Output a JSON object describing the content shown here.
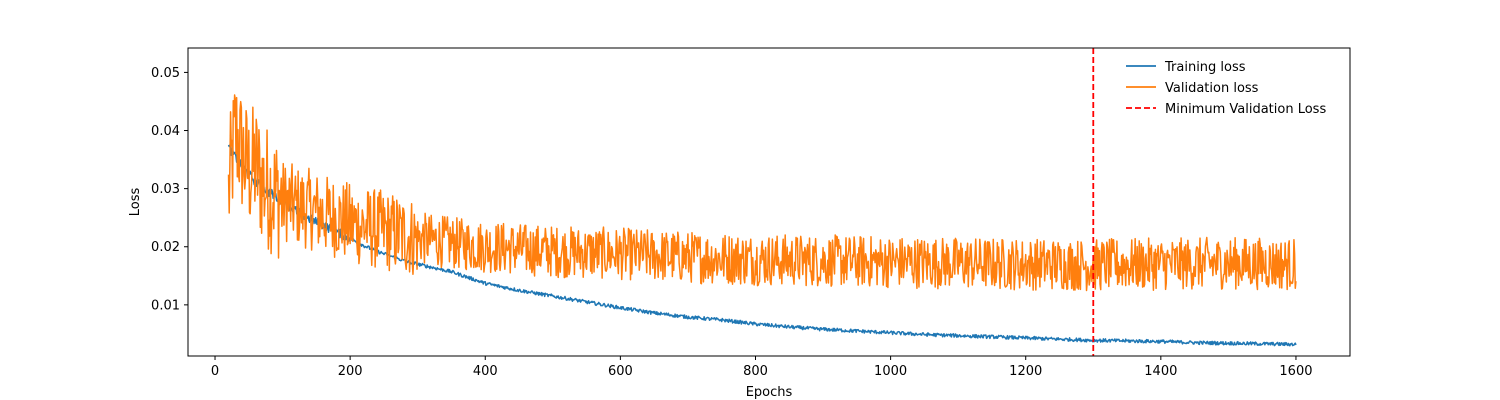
{
  "chart_data": {
    "type": "line",
    "title": "",
    "xlabel": "Epochs",
    "ylabel": "Loss",
    "xlim": [
      -40,
      1680
    ],
    "ylim": [
      0.0012,
      0.0542
    ],
    "x_ticks": [
      0,
      200,
      400,
      600,
      800,
      1000,
      1200,
      1400,
      1600
    ],
    "y_ticks": [
      0.01,
      0.02,
      0.03,
      0.04,
      0.05
    ],
    "x_tick_labels": [
      "0",
      "200",
      "400",
      "600",
      "800",
      "1000",
      "1200",
      "1400",
      "1600"
    ],
    "y_tick_labels": [
      "0.01",
      "0.02",
      "0.03",
      "0.04",
      "0.05"
    ],
    "grid": false,
    "legend": {
      "position": "top-right",
      "frame": false,
      "entries": [
        "Training loss",
        "Validation loss",
        "Minimum Validation Loss"
      ]
    },
    "series": [
      {
        "name": "Training loss",
        "color": "#1f77b4",
        "x": [
          20,
          40,
          60,
          80,
          100,
          120,
          140,
          160,
          180,
          200,
          220,
          240,
          260,
          280,
          300,
          350,
          400,
          450,
          500,
          550,
          600,
          650,
          700,
          750,
          800,
          850,
          900,
          950,
          1000,
          1050,
          1100,
          1150,
          1200,
          1250,
          1300,
          1350,
          1400,
          1450,
          1500,
          1550,
          1600
        ],
        "values": [
          0.0372,
          0.0338,
          0.0312,
          0.0294,
          0.0278,
          0.0262,
          0.0248,
          0.0237,
          0.0226,
          0.0214,
          0.0202,
          0.0192,
          0.0184,
          0.0176,
          0.017,
          0.0157,
          0.0137,
          0.0125,
          0.0115,
          0.0105,
          0.0095,
          0.0086,
          0.0079,
          0.0074,
          0.0067,
          0.0062,
          0.0058,
          0.0055,
          0.0052,
          0.0049,
          0.0047,
          0.0045,
          0.0043,
          0.0041,
          0.0039,
          0.0038,
          0.0037,
          0.0035,
          0.0034,
          0.0033,
          0.0032
        ]
      },
      {
        "name": "Validation loss",
        "color": "#ff7f0e",
        "x": [
          20,
          30,
          40,
          50,
          60,
          70,
          80,
          90,
          100,
          120,
          140,
          160,
          180,
          200,
          220,
          240,
          260,
          280,
          300,
          330,
          360,
          400,
          430,
          460,
          500,
          550,
          600,
          650,
          700,
          750,
          800,
          850,
          900,
          950,
          1000,
          1050,
          1100,
          1150,
          1200,
          1250,
          1300,
          1350,
          1400,
          1450,
          1500,
          1550,
          1600
        ],
        "values": [
          0.029,
          0.04,
          0.036,
          0.033,
          0.034,
          0.031,
          0.03,
          0.029,
          0.028,
          0.027,
          0.0265,
          0.0255,
          0.025,
          0.024,
          0.0235,
          0.023,
          0.0225,
          0.022,
          0.0215,
          0.021,
          0.0205,
          0.02,
          0.0198,
          0.0195,
          0.0192,
          0.019,
          0.0188,
          0.0185,
          0.0182,
          0.018,
          0.0178,
          0.0177,
          0.0176,
          0.0175,
          0.0174,
          0.0173,
          0.0172,
          0.0171,
          0.017,
          0.017,
          0.0168,
          0.017,
          0.017,
          0.0171,
          0.0172,
          0.0171,
          0.017
        ],
        "noise_amplitude_note": "Values are the central trend; the plotted line fluctuates roughly ±0.005 around it after epoch 300, more at early epochs"
      }
    ],
    "vline": {
      "name": "Minimum Validation Loss",
      "x": 1300,
      "color": "#ff0000",
      "style": "dashed"
    }
  }
}
